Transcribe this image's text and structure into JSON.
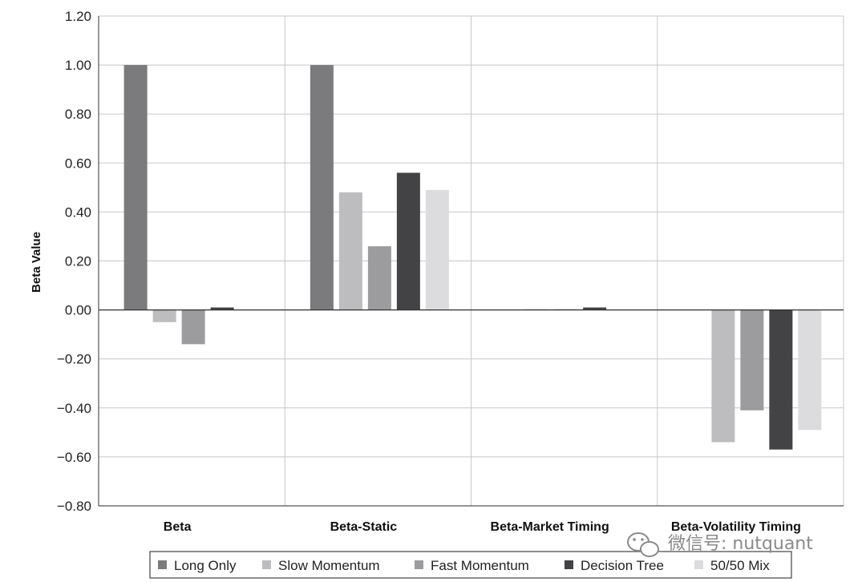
{
  "chart_data": {
    "type": "bar",
    "categories": [
      "Beta",
      "Beta-Static",
      "Beta-Market Timing",
      "Beta-Volatility Timing"
    ],
    "series": [
      {
        "name": "Long Only",
        "color": "#7b7b7d",
        "values": [
          1.0,
          1.0,
          0.0,
          0.0
        ]
      },
      {
        "name": "Slow Momentum",
        "color": "#bdbdbf",
        "values": [
          -0.05,
          0.48,
          0.003,
          -0.54
        ]
      },
      {
        "name": "Fast Momentum",
        "color": "#9c9c9e",
        "values": [
          -0.14,
          0.26,
          0.003,
          -0.41
        ]
      },
      {
        "name": "Decision Tree",
        "color": "#434345",
        "values": [
          0.01,
          0.56,
          0.01,
          -0.57
        ]
      },
      {
        "name": "50/50 Mix",
        "color": "#dcdcde",
        "values": [
          0.0,
          0.49,
          0.0,
          -0.49
        ]
      }
    ],
    "ylabel": "Beta Value",
    "ylim": [
      -0.8,
      1.2
    ],
    "yticks": [
      "1.20",
      "1.00",
      "0.80",
      "0.60",
      "0.40",
      "0.20",
      "0.00",
      "−0.20",
      "−0.40",
      "−0.60",
      "−0.80"
    ],
    "grid": true,
    "legend_position": "bottom"
  },
  "watermark": "微信号: nutquant"
}
